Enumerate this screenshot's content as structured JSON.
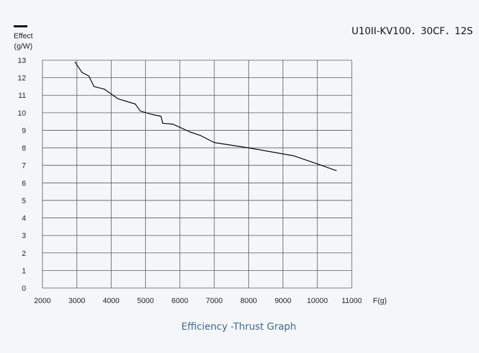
{
  "model_name": "U10II-KV100．30CF．12S",
  "caption": "Efficiency -Thrust Graph",
  "chart_data": {
    "type": "line",
    "title": "",
    "xlabel": "F(g)",
    "ylabel_line1": "Effect",
    "ylabel_line2": "(g/W)",
    "xlim": [
      2000,
      11000
    ],
    "ylim": [
      0,
      13
    ],
    "x_ticks": [
      2000,
      3000,
      4000,
      5000,
      6000,
      7000,
      8000,
      9000,
      10000,
      11000
    ],
    "y_ticks": [
      0,
      1,
      2,
      3,
      4,
      5,
      6,
      7,
      8,
      9,
      10,
      11,
      12,
      13
    ],
    "grid": true,
    "legend": "top-left",
    "line_color": "#000000",
    "series": [
      {
        "name": "",
        "x": [
          2950,
          3150,
          3350,
          3500,
          3800,
          4200,
          4700,
          4850,
          5200,
          5450,
          5500,
          5800,
          6300,
          6600,
          7000,
          8000,
          9300,
          10050,
          10550
        ],
        "y": [
          12.9,
          12.3,
          12.1,
          11.5,
          11.35,
          10.8,
          10.5,
          10.1,
          9.9,
          9.8,
          9.4,
          9.35,
          8.9,
          8.7,
          8.3,
          8.0,
          7.55,
          7.05,
          6.7
        ]
      }
    ]
  }
}
